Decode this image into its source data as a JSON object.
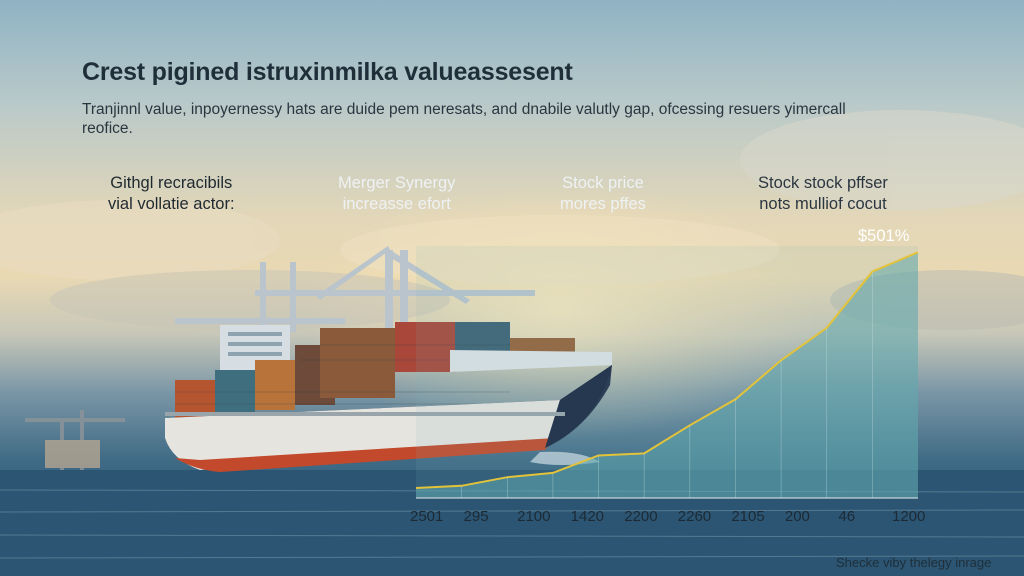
{
  "header": {
    "title": "Crest pigined istruxinmilka valueassesent",
    "subtitle": "Tranjinnl value, inpoyernessy hats are duide pem neresats, and dnabile valutly gap, ofcessing resuers yimercall reofice."
  },
  "labels": [
    {
      "line1": "Githgl recracibils",
      "line2": "vial vollatie actor:"
    },
    {
      "line1": "Merger Synergy",
      "line2": "increasse efort"
    },
    {
      "line1": "Stock price",
      "line2": "mores pffes"
    },
    {
      "line1": "Stock stock pffser",
      "line2": "nots mulliof cocut"
    }
  ],
  "peak_label": "$501%",
  "chart_data": {
    "type": "area",
    "x_tick_labels": [
      "2501",
      "295",
      "2100",
      "1420",
      "2200",
      "2260",
      "2105",
      "200",
      "46",
      "1200"
    ],
    "values": [
      0,
      2,
      10,
      14,
      30,
      32,
      58,
      82,
      118,
      148,
      200,
      218
    ],
    "ylim": [
      0,
      220
    ],
    "colors": {
      "line": "#e2c33a",
      "fill": "#5fa7ad"
    }
  },
  "footer": {
    "credit": "Shecke viby thelegy inrage"
  },
  "colors": {
    "title": "#1f2f3a",
    "sea": "#244e6c",
    "hull": "#1f2d45",
    "hull_stripe": "#c2492b"
  }
}
